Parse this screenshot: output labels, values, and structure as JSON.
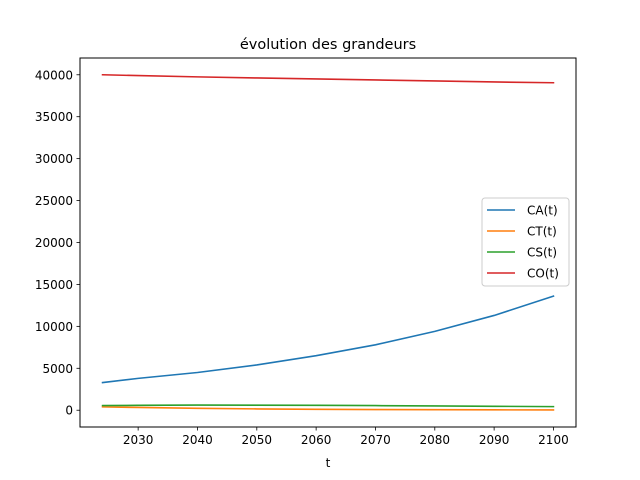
{
  "chart_data": {
    "type": "line",
    "title": "évolution des grandeurs",
    "xlabel": "t",
    "ylabel": "",
    "xlim": [
      2020.2,
      2103.8
    ],
    "ylim": [
      -2000,
      42000
    ],
    "xticks": [
      2030,
      2040,
      2050,
      2060,
      2070,
      2080,
      2090,
      2100
    ],
    "yticks": [
      0,
      5000,
      10000,
      15000,
      20000,
      25000,
      30000,
      35000,
      40000
    ],
    "grid": false,
    "legend_position": "center-right",
    "series": [
      {
        "name": "CA(t)",
        "color": "#1f77b4",
        "x": [
          2024,
          2030,
          2040,
          2050,
          2060,
          2070,
          2080,
          2090,
          2100
        ],
        "values": [
          3300,
          3800,
          4500,
          5400,
          6500,
          7800,
          9400,
          11300,
          13600
        ]
      },
      {
        "name": "CT(t)",
        "color": "#ff7f0e",
        "x": [
          2024,
          2030,
          2040,
          2050,
          2060,
          2070,
          2080,
          2090,
          2100
        ],
        "values": [
          400,
          330,
          230,
          160,
          110,
          80,
          60,
          45,
          35
        ]
      },
      {
        "name": "CS(t)",
        "color": "#2ca02c",
        "x": [
          2024,
          2030,
          2040,
          2050,
          2060,
          2070,
          2080,
          2090,
          2100
        ],
        "values": [
          550,
          580,
          610,
          600,
          580,
          550,
          510,
          470,
          430
        ]
      },
      {
        "name": "CO(t)",
        "color": "#d62728",
        "x": [
          2024,
          2030,
          2040,
          2050,
          2060,
          2070,
          2080,
          2090,
          2100
        ],
        "values": [
          40000,
          39900,
          39750,
          39620,
          39500,
          39380,
          39260,
          39140,
          39050
        ]
      }
    ]
  }
}
